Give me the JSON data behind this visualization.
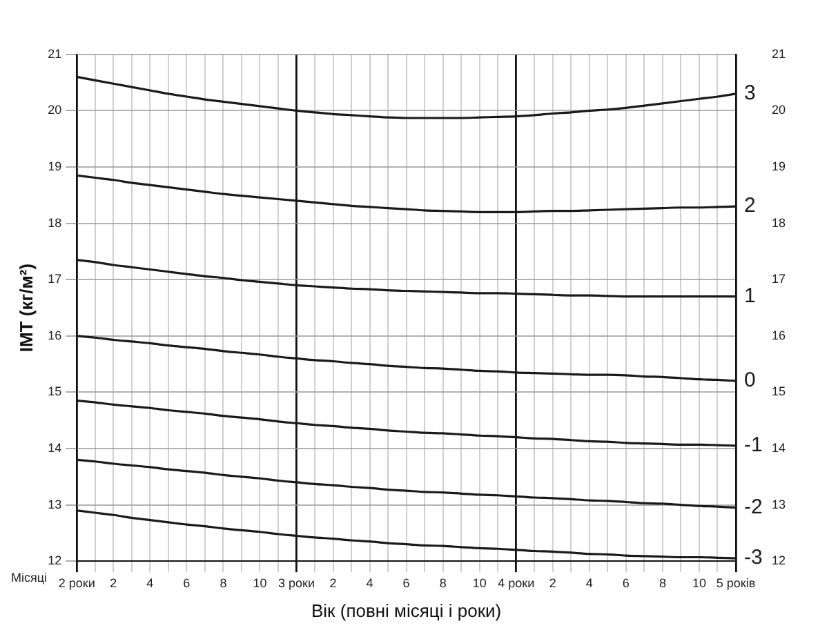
{
  "chart_data": {
    "type": "line",
    "ylabel": "ІМТ (кг/м²)",
    "xlabel": "Вік (повні місяці і роки)",
    "annotations": [
      "Місяці"
    ],
    "categories": [
      "2 роки",
      null,
      "2",
      null,
      "4",
      null,
      "6",
      null,
      "8",
      null,
      "10",
      null,
      "3 роки",
      null,
      "2",
      null,
      "4",
      null,
      "6",
      null,
      "8",
      null,
      "10",
      null,
      "4 роки",
      null,
      "2",
      null,
      "4",
      null,
      "6",
      null,
      "8",
      null,
      "10",
      null,
      "5 років"
    ],
    "series": [
      {
        "name": "3",
        "color": "#1a1a1a",
        "values": [
          20.6,
          20.54,
          20.48,
          20.42,
          20.36,
          20.3,
          20.25,
          20.2,
          20.16,
          20.12,
          20.08,
          20.04,
          20.0,
          19.97,
          19.94,
          19.92,
          19.9,
          19.88,
          19.87,
          19.87,
          19.87,
          19.87,
          19.88,
          19.89,
          19.9,
          19.92,
          19.95,
          19.97,
          20.0,
          20.02,
          20.05,
          20.09,
          20.13,
          20.17,
          20.21,
          20.25,
          20.3
        ]
      },
      {
        "name": "2",
        "color": "#1a1a1a",
        "values": [
          18.85,
          18.81,
          18.77,
          18.72,
          18.68,
          18.64,
          18.6,
          18.56,
          18.52,
          18.49,
          18.46,
          18.43,
          18.4,
          18.37,
          18.34,
          18.31,
          18.29,
          18.27,
          18.25,
          18.23,
          18.22,
          18.21,
          18.2,
          18.2,
          18.2,
          18.21,
          18.22,
          18.22,
          18.23,
          18.24,
          18.25,
          18.26,
          18.27,
          18.28,
          18.28,
          18.29,
          18.3
        ]
      },
      {
        "name": "1",
        "color": "#1a1a1a",
        "values": [
          17.35,
          17.31,
          17.26,
          17.22,
          17.18,
          17.14,
          17.1,
          17.06,
          17.03,
          16.99,
          16.96,
          16.93,
          16.9,
          16.88,
          16.86,
          16.84,
          16.83,
          16.81,
          16.8,
          16.79,
          16.78,
          16.77,
          16.76,
          16.76,
          16.75,
          16.74,
          16.73,
          16.72,
          16.72,
          16.71,
          16.7,
          16.7,
          16.7,
          16.7,
          16.7,
          16.7,
          16.7
        ]
      },
      {
        "name": "0",
        "color": "#1a1a1a",
        "values": [
          16.0,
          15.97,
          15.93,
          15.9,
          15.87,
          15.83,
          15.8,
          15.77,
          15.73,
          15.7,
          15.67,
          15.63,
          15.6,
          15.57,
          15.55,
          15.52,
          15.5,
          15.47,
          15.45,
          15.43,
          15.42,
          15.4,
          15.38,
          15.37,
          15.35,
          15.34,
          15.33,
          15.32,
          15.31,
          15.31,
          15.3,
          15.28,
          15.27,
          15.25,
          15.23,
          15.22,
          15.2
        ]
      },
      {
        "name": "-1",
        "color": "#1a1a1a",
        "values": [
          14.85,
          14.82,
          14.78,
          14.75,
          14.72,
          14.68,
          14.65,
          14.62,
          14.58,
          14.55,
          14.52,
          14.48,
          14.45,
          14.42,
          14.4,
          14.37,
          14.35,
          14.32,
          14.3,
          14.28,
          14.27,
          14.25,
          14.23,
          14.22,
          14.2,
          14.18,
          14.17,
          14.15,
          14.13,
          14.12,
          14.1,
          14.09,
          14.08,
          14.07,
          14.07,
          14.06,
          14.05
        ]
      },
      {
        "name": "-2",
        "color": "#1a1a1a",
        "values": [
          13.8,
          13.77,
          13.73,
          13.7,
          13.67,
          13.63,
          13.6,
          13.57,
          13.53,
          13.5,
          13.47,
          13.43,
          13.4,
          13.37,
          13.35,
          13.32,
          13.3,
          13.27,
          13.25,
          13.23,
          13.22,
          13.2,
          13.18,
          13.17,
          13.15,
          13.13,
          13.12,
          13.1,
          13.08,
          13.07,
          13.05,
          13.03,
          13.02,
          13.0,
          12.98,
          12.97,
          12.95
        ]
      },
      {
        "name": "-3",
        "color": "#1a1a1a",
        "values": [
          12.9,
          12.86,
          12.82,
          12.77,
          12.73,
          12.69,
          12.65,
          12.62,
          12.58,
          12.55,
          12.52,
          12.48,
          12.45,
          12.42,
          12.4,
          12.37,
          12.35,
          12.32,
          12.3,
          12.28,
          12.27,
          12.25,
          12.23,
          12.22,
          12.2,
          12.18,
          12.17,
          12.15,
          12.13,
          12.12,
          12.1,
          12.09,
          12.08,
          12.07,
          12.07,
          12.06,
          12.05
        ]
      }
    ],
    "ylim": [
      12,
      21
    ],
    "yticks": [
      12,
      13,
      14,
      15,
      16,
      17,
      18,
      19,
      20,
      21
    ],
    "y2lim": [
      12,
      21
    ],
    "y2ticks": [
      12,
      13,
      14,
      15,
      16,
      17,
      18,
      19,
      20,
      21
    ],
    "grid": true,
    "legend": false,
    "marker": "none",
    "line_style": "solid"
  }
}
